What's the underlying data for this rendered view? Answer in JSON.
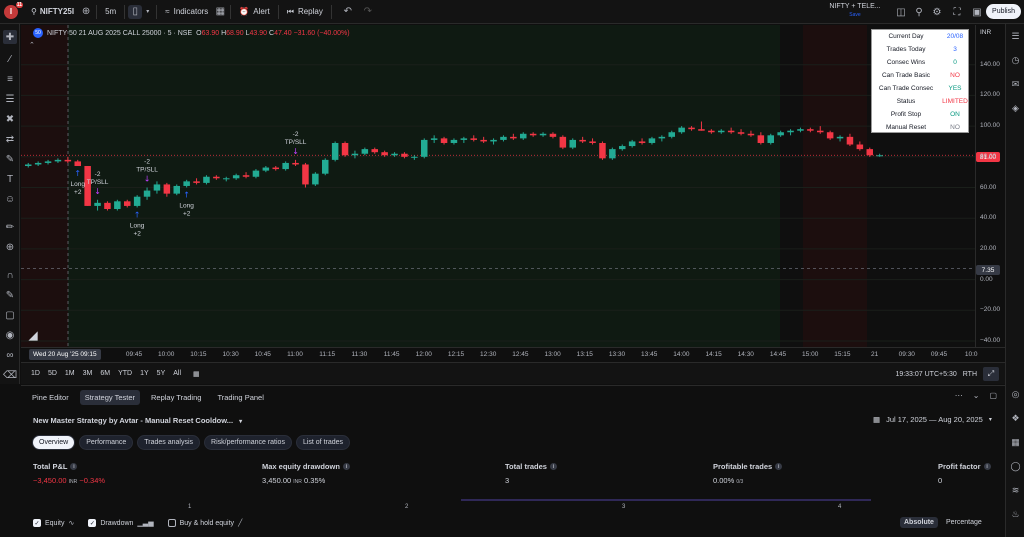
{
  "topbar": {
    "notification_count": "11",
    "symbol": "NIFTY25I",
    "interval": "5m",
    "indicators_label": "Indicators",
    "alert_label": "Alert",
    "replay_label": "Replay",
    "broker_name": "NIFTY + TELE...",
    "broker_sub": "Save",
    "publish_label": "Publish"
  },
  "chart": {
    "symbol_title": "NIFTY 50 21 AUG 2025 CALL 25000 · 5 · NSE",
    "ohlc": {
      "o_label": "O",
      "o": "63.90",
      "h_label": "H",
      "h": "68.90",
      "l_label": "L",
      "l": "43.90",
      "c_label": "C",
      "c": "47.40",
      "change": "−31.60 (−40.00%)"
    },
    "currency": "INR",
    "last_price": "81.00",
    "cursor_price": "7.35",
    "cursor_date": "Wed 20 Aug '25  09:15",
    "colors": {
      "up": "#22ab94",
      "down": "#f23645",
      "bg_green": "#0f1a12",
      "bg_red": "#1c0e0e"
    },
    "signals": [
      {
        "kind": "exit",
        "qty": "-2",
        "label": "TP/SLL"
      },
      {
        "kind": "exit",
        "qty": "-2",
        "label": "TP/SLL"
      },
      {
        "kind": "exit",
        "qty": "-2",
        "label": "TP/SLL"
      },
      {
        "kind": "entry",
        "label": "Long",
        "qty": "+2"
      },
      {
        "kind": "entry",
        "label": "Long",
        "qty": "+2"
      },
      {
        "kind": "entry",
        "label": "Long",
        "qty": "+2"
      }
    ]
  },
  "chart_data": {
    "type": "candlestick",
    "ylim": [
      -40,
      160
    ],
    "y_ticks": [
      "140.00",
      "120.00",
      "100.00",
      "80.00",
      "60.00",
      "40.00",
      "20.00",
      "0.00",
      "−20.00",
      "−40.00"
    ],
    "x_ticks": [
      "09:45",
      "10:00",
      "10:15",
      "10:30",
      "10:45",
      "11:00",
      "11:15",
      "11:30",
      "11:45",
      "12:00",
      "12:15",
      "12:30",
      "12:45",
      "13:00",
      "13:15",
      "13:30",
      "13:45",
      "14:00",
      "14:15",
      "14:30",
      "14:45",
      "15:00",
      "15:15",
      "21",
      "09:30",
      "09:45",
      "10:0"
    ],
    "candles": [
      [
        74,
        76,
        73,
        75
      ],
      [
        75,
        77,
        74,
        76
      ],
      [
        76,
        78,
        75,
        77
      ],
      [
        77,
        79,
        76,
        78
      ],
      [
        78,
        80,
        76,
        77
      ],
      [
        77,
        78,
        74,
        74
      ],
      [
        74,
        74,
        48,
        48
      ],
      [
        48,
        52,
        45,
        50
      ],
      [
        50,
        51,
        45,
        46
      ],
      [
        46,
        52,
        45,
        51
      ],
      [
        51,
        52,
        47,
        48
      ],
      [
        48,
        55,
        47,
        54
      ],
      [
        54,
        60,
        52,
        58
      ],
      [
        58,
        64,
        56,
        62
      ],
      [
        62,
        63,
        54,
        56
      ],
      [
        56,
        62,
        55,
        61
      ],
      [
        61,
        65,
        60,
        64
      ],
      [
        64,
        66,
        62,
        63
      ],
      [
        63,
        68,
        62,
        67
      ],
      [
        67,
        68,
        65,
        66
      ],
      [
        66,
        67,
        64,
        66
      ],
      [
        66,
        69,
        65,
        68
      ],
      [
        68,
        70,
        66,
        67
      ],
      [
        67,
        72,
        66,
        71
      ],
      [
        71,
        74,
        70,
        73
      ],
      [
        73,
        74,
        71,
        72
      ],
      [
        72,
        77,
        71,
        76
      ],
      [
        76,
        78,
        74,
        75
      ],
      [
        75,
        76,
        60,
        62
      ],
      [
        62,
        70,
        61,
        69
      ],
      [
        69,
        79,
        68,
        78
      ],
      [
        78,
        90,
        77,
        89
      ],
      [
        89,
        90,
        80,
        81
      ],
      [
        81,
        84,
        79,
        82
      ],
      [
        82,
        86,
        81,
        85
      ],
      [
        85,
        86,
        82,
        83
      ],
      [
        83,
        84,
        80,
        81
      ],
      [
        81,
        83,
        80,
        82
      ],
      [
        82,
        83,
        79,
        80
      ],
      [
        80,
        81,
        78,
        80
      ],
      [
        80,
        92,
        79,
        91
      ],
      [
        91,
        94,
        89,
        92
      ],
      [
        92,
        93,
        88,
        89
      ],
      [
        89,
        92,
        88,
        91
      ],
      [
        91,
        93,
        89,
        92
      ],
      [
        92,
        94,
        90,
        91
      ],
      [
        91,
        93,
        89,
        90
      ],
      [
        90,
        92,
        88,
        91
      ],
      [
        91,
        94,
        90,
        93
      ],
      [
        93,
        95,
        91,
        92
      ],
      [
        92,
        96,
        91,
        95
      ],
      [
        95,
        96,
        93,
        94
      ],
      [
        94,
        96,
        93,
        95
      ],
      [
        95,
        96,
        92,
        93
      ],
      [
        93,
        94,
        85,
        86
      ],
      [
        86,
        92,
        85,
        91
      ],
      [
        91,
        93,
        89,
        90
      ],
      [
        90,
        92,
        88,
        89
      ],
      [
        89,
        90,
        78,
        79
      ],
      [
        79,
        86,
        78,
        85
      ],
      [
        85,
        88,
        84,
        87
      ],
      [
        87,
        91,
        86,
        90
      ],
      [
        90,
        92,
        88,
        89
      ],
      [
        89,
        93,
        88,
        92
      ],
      [
        92,
        94,
        90,
        93
      ],
      [
        93,
        97,
        92,
        96
      ],
      [
        96,
        100,
        95,
        99
      ],
      [
        99,
        100,
        97,
        98
      ],
      [
        98,
        103,
        97,
        97
      ],
      [
        97,
        98,
        95,
        96
      ],
      [
        96,
        98,
        95,
        97
      ],
      [
        97,
        99,
        95,
        96
      ],
      [
        96,
        98,
        94,
        95
      ],
      [
        95,
        97,
        93,
        94
      ],
      [
        94,
        96,
        88,
        89
      ],
      [
        89,
        95,
        88,
        94
      ],
      [
        94,
        97,
        93,
        96
      ],
      [
        96,
        98,
        94,
        97
      ],
      [
        97,
        99,
        96,
        98
      ],
      [
        98,
        99,
        96,
        97
      ],
      [
        97,
        100,
        95,
        96
      ],
      [
        96,
        97,
        91,
        92
      ],
      [
        92,
        94,
        90,
        93
      ],
      [
        93,
        95,
        87,
        88
      ],
      [
        88,
        90,
        84,
        85
      ],
      [
        85,
        86,
        80,
        81
      ],
      [
        81,
        82,
        80,
        81
      ]
    ]
  },
  "info_table": [
    {
      "label": "Current Day",
      "value": "20/08",
      "color": "#2962ff"
    },
    {
      "label": "Trades Today",
      "value": "3",
      "color": "#2962ff"
    },
    {
      "label": "Consec Wins",
      "value": "0",
      "color": "#089981"
    },
    {
      "label": "Can Trade Basic",
      "value": "NO",
      "color": "#f23645"
    },
    {
      "label": "Can Trade Consec",
      "value": "YES",
      "color": "#089981"
    },
    {
      "label": "Status",
      "value": "LIMITED",
      "color": "#f23645"
    },
    {
      "label": "Profit Stop",
      "value": "ON",
      "color": "#089981"
    },
    {
      "label": "Manual Reset",
      "value": "NO",
      "color": "#787b86"
    }
  ],
  "rangebar": {
    "ranges": [
      "1D",
      "5D",
      "1M",
      "3M",
      "6M",
      "YTD",
      "1Y",
      "5Y",
      "All"
    ],
    "clock": "19:33:07 UTC+5:30",
    "session": "RTH"
  },
  "panel": {
    "tabs": [
      "Pine Editor",
      "Strategy Tester",
      "Replay Trading",
      "Trading Panel"
    ],
    "strategy_name": "New Master Strategy by Avtar - Manual Reset Cooldow...",
    "date_range": "Jul 17, 2025 — Aug 20, 2025",
    "subtabs": [
      "Overview",
      "Performance",
      "Trades analysis",
      "Risk/performance ratios",
      "List of trades"
    ],
    "metrics": {
      "total_pnl": {
        "label": "Total P&L",
        "value": "−3,450.00",
        "unit": "INR",
        "pct": "−0.34%"
      },
      "max_dd": {
        "label": "Max equity drawdown",
        "value": "3,450.00",
        "unit": "INR",
        "pct": "0.35%"
      },
      "total_trades": {
        "label": "Total trades",
        "value": "3"
      },
      "profitable": {
        "label": "Profitable trades",
        "value": "0.00%",
        "unit": "0/3"
      },
      "profit_factor": {
        "label": "Profit factor",
        "value": "0"
      }
    },
    "mini_axis": [
      "1",
      "2",
      "3",
      "4"
    ],
    "checks": [
      {
        "label": "Equity",
        "checked": true
      },
      {
        "label": "Drawdown",
        "checked": true
      },
      {
        "label": "Buy & hold equity",
        "checked": false
      }
    ],
    "mode": [
      "Absolute",
      "Percentage"
    ]
  }
}
